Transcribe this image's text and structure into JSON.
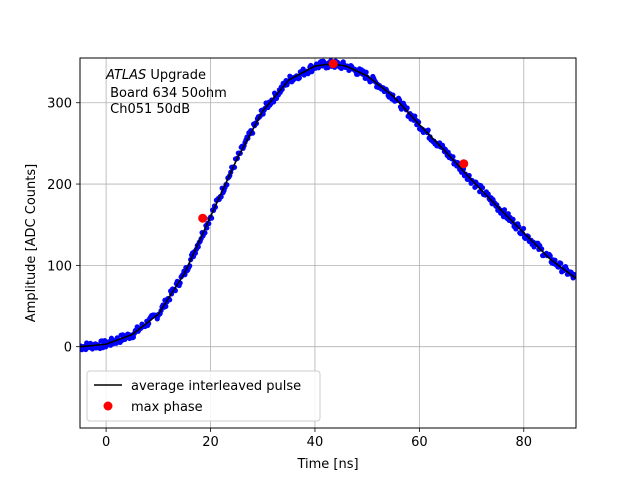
{
  "chart_data": {
    "type": "scatter",
    "title": "",
    "xlabel": "Time [ns]",
    "ylabel": "Amplitude [ADC Counts]",
    "xlim": [
      -5,
      90
    ],
    "ylim": [
      -100,
      355
    ],
    "xticks": [
      0,
      20,
      40,
      60,
      80
    ],
    "yticks": [
      0,
      100,
      200,
      300
    ],
    "grid": true,
    "legend_placement": "lower-left",
    "annotation": {
      "italic": "ATLAS",
      "line1_rest": " Upgrade",
      "line2": " Board 634 50ohm",
      "line3": " Ch051 50dB"
    },
    "series": [
      {
        "name": "average interleaved pulse",
        "kind": "line",
        "color": "#000000",
        "x": [
          -5,
          0,
          5,
          10,
          15,
          20,
          25,
          30,
          35,
          40,
          42,
          44,
          46,
          50,
          55,
          60,
          65,
          70,
          75,
          80,
          85,
          90
        ],
        "y": [
          0,
          3,
          15,
          40,
          90,
          160,
          230,
          290,
          328,
          345,
          347,
          347,
          345,
          333,
          308,
          273,
          240,
          205,
          172,
          140,
          108,
          84
        ]
      },
      {
        "name": "",
        "kind": "points",
        "color": "#0000ff",
        "x": [
          -5,
          0,
          5,
          10,
          15,
          20,
          25,
          30,
          35,
          40,
          42,
          44,
          46,
          50,
          55,
          60,
          65,
          70,
          75,
          80,
          85,
          90
        ],
        "y": [
          0,
          3,
          15,
          40,
          90,
          160,
          230,
          290,
          328,
          345,
          347,
          347,
          345,
          333,
          308,
          273,
          240,
          205,
          172,
          140,
          108,
          84
        ]
      },
      {
        "name": "max phase",
        "kind": "markers",
        "color": "#ff0000",
        "x": [
          18.5,
          43.5,
          68.5
        ],
        "y": [
          158,
          348,
          225
        ]
      }
    ]
  }
}
